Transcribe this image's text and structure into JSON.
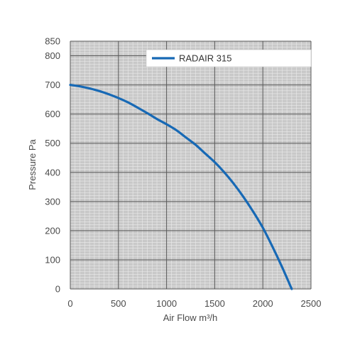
{
  "chart_data": {
    "type": "line",
    "xlabel": "Air Flow m³/h",
    "ylabel": "Pressure Pa",
    "xlim": [
      0,
      2500
    ],
    "ylim": [
      0,
      850
    ],
    "xticks": [
      0,
      500,
      1000,
      1500,
      2000,
      2500
    ],
    "yticks": [
      0,
      100,
      200,
      300,
      400,
      500,
      600,
      700,
      800,
      850
    ],
    "grid": true,
    "legend_position": "top-right",
    "colors": {
      "plot_background": "#c8c8c8",
      "grid_minor": "#ebebeb",
      "grid_major": "#5a5a5a",
      "legend_background": "#ffffff"
    },
    "series": [
      {
        "name": "RADAIR 315",
        "color": "#1769b5",
        "x": [
          0,
          100,
          200,
          300,
          400,
          500,
          600,
          700,
          800,
          900,
          1000,
          1100,
          1200,
          1300,
          1400,
          1500,
          1600,
          1700,
          1800,
          1900,
          2000,
          2100,
          2200,
          2300
        ],
        "y": [
          700,
          695,
          688,
          679,
          668,
          655,
          640,
          622,
          603,
          583,
          565,
          545,
          520,
          495,
          465,
          435,
          400,
          360,
          315,
          265,
          210,
          145,
          75,
          0
        ]
      }
    ]
  }
}
